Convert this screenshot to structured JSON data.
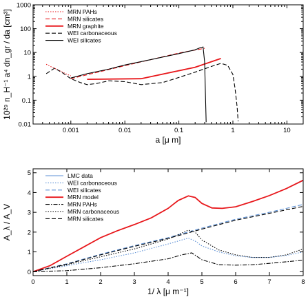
{
  "colors": {
    "red": "#e8171b",
    "blue": "#5b8fd4",
    "black": "#000000"
  },
  "chart_data": [
    {
      "type": "line",
      "xscale": "log",
      "yscale": "log",
      "xlim": [
        0.0002,
        20
      ],
      "ylim": [
        0.01,
        1000
      ],
      "xticks": [
        "0.001",
        "0.01",
        "0.1",
        "1",
        "10"
      ],
      "yticks": [
        "0.01",
        "0.1",
        "1",
        "10",
        "100",
        "1000"
      ],
      "xlabel": "a [μ m]",
      "ylabel": "10²⁹ n_H⁻¹ a⁴ dn_gr / da [cm³]",
      "legend_position": "top-left",
      "series": [
        {
          "name": "MRN PAHs",
          "color": "#e8171b",
          "style": "dotted",
          "x": [
            0.00035,
            0.00045,
            0.0006,
            0.0008,
            0.001
          ],
          "y": [
            3.2,
            2.4,
            1.8,
            1.3,
            1.05
          ]
        },
        {
          "name": "MRN silicates",
          "color": "#e8171b",
          "style": "dashed",
          "x": [
            0.001,
            0.01,
            0.1,
            0.3
          ],
          "y": [
            0.8,
            2.8,
            9.5,
            15
          ]
        },
        {
          "name": "MRN graphite",
          "color": "#e8171b",
          "style": "solid",
          "x": [
            0.002,
            0.02,
            0.2,
            0.6
          ],
          "y": [
            0.75,
            0.8,
            2.4,
            5.6
          ]
        },
        {
          "name": "WEI carbonaceous",
          "color": "#000000",
          "style": "dashed",
          "x": [
            0.00035,
            0.0005,
            0.0007,
            0.001,
            0.0015,
            0.002,
            0.003,
            0.005,
            0.01,
            0.02,
            0.05,
            0.1,
            0.2,
            0.4,
            0.6,
            0.8,
            1.0,
            1.1,
            1.2,
            1.25
          ],
          "y": [
            1.3,
            2.2,
            1.4,
            0.8,
            0.55,
            0.45,
            0.5,
            0.65,
            0.6,
            0.45,
            0.55,
            0.9,
            1.5,
            2.6,
            3.5,
            2.9,
            1.2,
            0.3,
            0.05,
            0.013
          ]
        },
        {
          "name": "WEI silicates",
          "color": "#000000",
          "style": "solid",
          "x": [
            0.001,
            0.002,
            0.005,
            0.01,
            0.03,
            0.1,
            0.2,
            0.25,
            0.28,
            0.3,
            0.31,
            0.32
          ],
          "y": [
            0.85,
            1.3,
            2.0,
            3.0,
            5.0,
            9.0,
            13,
            16,
            17,
            4,
            0.2,
            0.012
          ]
        }
      ]
    },
    {
      "type": "line",
      "xlim": [
        0,
        8
      ],
      "ylim": [
        -0.2,
        5.2
      ],
      "xticks": [
        "0",
        "1",
        "2",
        "3",
        "4",
        "5",
        "6",
        "7",
        "8"
      ],
      "yticks": [
        "0",
        "1",
        "2",
        "3",
        "4",
        "5"
      ],
      "xlabel": "1/ λ [μ m⁻¹]",
      "ylabel": "A_λ / A_V",
      "legend_position": "top-left",
      "series": [
        {
          "name": "LMC data",
          "color": "#5b8fd4",
          "style": "solid",
          "x": [
            0.0,
            0.5,
            1.0,
            1.5,
            2.0,
            2.5,
            3.0,
            3.5,
            4.0,
            4.3,
            4.6,
            4.8,
            5.0,
            5.3,
            5.6,
            6.0,
            6.5,
            7.0,
            7.5,
            8.0
          ],
          "y": [
            0.0,
            0.3,
            0.78,
            1.25,
            1.72,
            2.07,
            2.38,
            2.72,
            3.2,
            3.6,
            3.83,
            3.75,
            3.45,
            3.22,
            3.2,
            3.28,
            3.55,
            3.85,
            4.2,
            4.6
          ]
        },
        {
          "name": "WEI carbonaceous",
          "color": "#5b8fd4",
          "style": "dotted",
          "x": [
            0,
            1,
            2,
            3,
            4,
            4.5,
            4.6,
            4.8,
            5.0,
            5.5,
            6.0,
            6.5,
            7.0,
            7.5,
            8.0
          ],
          "y": [
            0.0,
            0.3,
            0.6,
            0.95,
            1.4,
            1.65,
            1.7,
            1.55,
            1.3,
            1.0,
            0.8,
            0.72,
            0.72,
            0.82,
            1.0
          ]
        },
        {
          "name": "WEI silicates",
          "color": "#5b8fd4",
          "style": "dashed",
          "x": [
            0,
            1,
            2,
            3,
            4,
            5,
            6,
            7,
            8
          ],
          "y": [
            0.0,
            0.4,
            0.88,
            1.32,
            1.72,
            2.2,
            2.65,
            3.0,
            3.4
          ]
        },
        {
          "name": "MRN model",
          "color": "#e8171b",
          "style": "solid",
          "x": [
            0.0,
            0.5,
            1.0,
            1.5,
            2.0,
            2.5,
            3.0,
            3.5,
            4.0,
            4.3,
            4.6,
            4.8,
            5.0,
            5.3,
            5.6,
            6.0,
            6.5,
            7.0,
            7.5,
            8.0
          ],
          "y": [
            0.0,
            0.3,
            0.78,
            1.25,
            1.72,
            2.07,
            2.38,
            2.72,
            3.2,
            3.6,
            3.83,
            3.75,
            3.45,
            3.22,
            3.2,
            3.28,
            3.55,
            3.85,
            4.2,
            4.62
          ]
        },
        {
          "name": "MRN PAHs",
          "color": "#000000",
          "style": "dashdot",
          "x": [
            0,
            1,
            2,
            3,
            4,
            4.4,
            4.7,
            5.0,
            5.5,
            6.0,
            6.5,
            7.0,
            7.5,
            8.0
          ],
          "y": [
            0.0,
            0.05,
            0.2,
            0.4,
            0.65,
            0.85,
            0.95,
            0.6,
            0.35,
            0.33,
            0.35,
            0.42,
            0.5,
            0.58
          ]
        },
        {
          "name": "MRN carbonaceous",
          "color": "#000000",
          "style": "dotted",
          "x": [
            0,
            1,
            2,
            3,
            4,
            4.4,
            4.6,
            4.8,
            5.0,
            5.5,
            6.0,
            6.5,
            7.0,
            7.5,
            8.0
          ],
          "y": [
            0.0,
            0.35,
            0.75,
            1.15,
            1.65,
            1.95,
            2.1,
            2.0,
            1.6,
            1.1,
            0.85,
            0.72,
            0.72,
            0.85,
            1.15
          ]
        },
        {
          "name": "MRN silicates",
          "color": "#000000",
          "style": "dashed",
          "x": [
            0,
            1,
            2,
            3,
            4,
            5,
            6,
            7,
            8
          ],
          "y": [
            0.0,
            0.38,
            0.85,
            1.28,
            1.68,
            2.15,
            2.6,
            2.95,
            3.3
          ]
        }
      ]
    }
  ]
}
